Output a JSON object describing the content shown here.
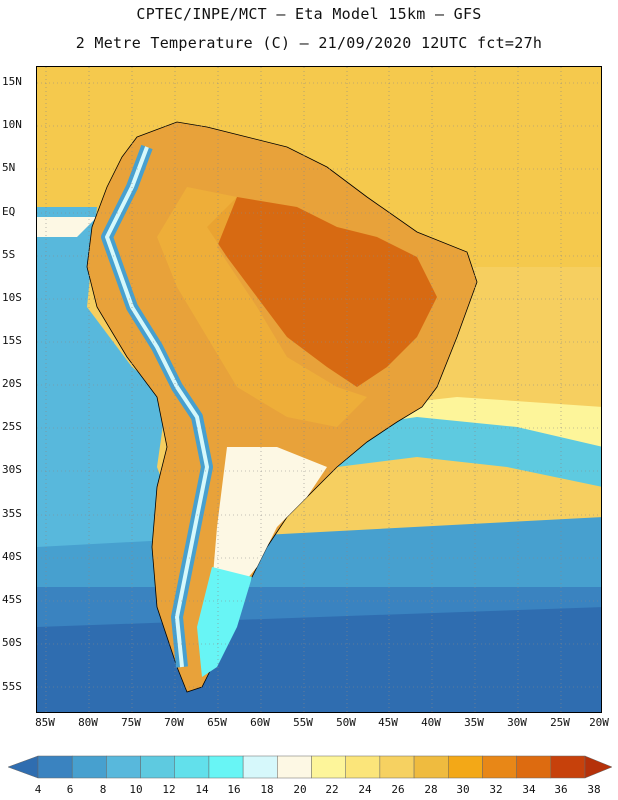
{
  "title_line1": "CPTEC/INPE/MCT –  Eta Model 15km – GFS",
  "title_line2": "2 Metre Temperature (C) – 21/09/2020 12UTC fct=27h",
  "map": {
    "region": "South America",
    "variable": "2 Metre Temperature",
    "unit": "C",
    "lat_range": [
      -58,
      17
    ],
    "lon_range": [
      -86,
      -20
    ],
    "lat_ticks": [
      "15N",
      "10N",
      "5N",
      "EQ",
      "5S",
      "10S",
      "15S",
      "20S",
      "25S",
      "30S",
      "35S",
      "40S",
      "45S",
      "50S",
      "55S"
    ],
    "lon_ticks": [
      "85W",
      "80W",
      "75W",
      "70W",
      "65W",
      "60W",
      "55W",
      "50W",
      "45W",
      "40W",
      "35W",
      "30W",
      "25W",
      "20W"
    ]
  },
  "colorbar": {
    "levels": [
      "4",
      "6",
      "8",
      "10",
      "12",
      "14",
      "16",
      "18",
      "20",
      "22",
      "24",
      "26",
      "28",
      "30",
      "32",
      "34",
      "36",
      "38"
    ],
    "colors": [
      "#2f6db0",
      "#3a83c0",
      "#47a0cf",
      "#58b8dc",
      "#5ecae0",
      "#62e0eb",
      "#68f5f5",
      "#d6f8fb",
      "#fdf8e4",
      "#fdf59a",
      "#fbe57a",
      "#f6d161",
      "#efbb3f",
      "#f3a817",
      "#e88717",
      "#dd6b10",
      "#c7410b",
      "#b5310a"
    ]
  }
}
